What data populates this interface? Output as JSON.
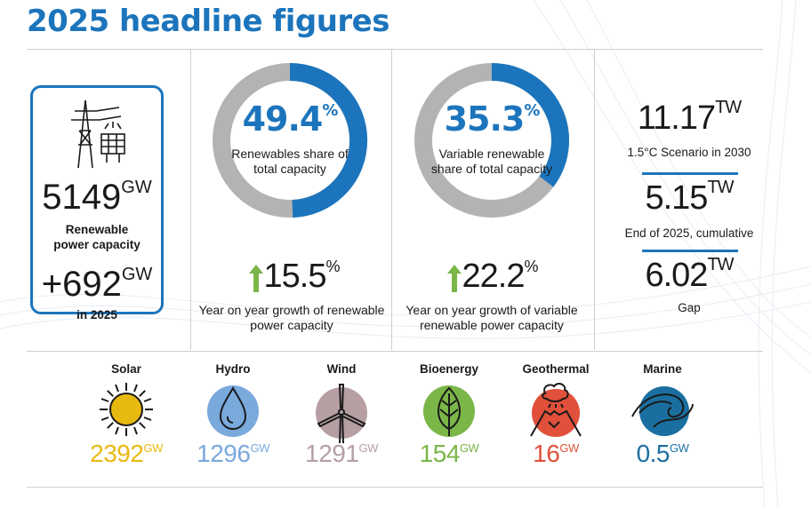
{
  "title": "2025 headline figures",
  "capacity": {
    "value": "5149",
    "unit": "GW",
    "label": "Renewable power capacity",
    "added_value": "+692",
    "added_unit": "GW",
    "added_label": "in 2025"
  },
  "renewables_share": {
    "value": "49.4",
    "unit": "%",
    "fraction": 0.494,
    "label": "Renewables share of total capacity",
    "growth_value": "15.5",
    "growth_unit": "%",
    "growth_label": "Year on year growth of renewable power capacity"
  },
  "variable_share": {
    "value": "35.3",
    "unit": "%",
    "fraction": 0.353,
    "label": "Variable renewable share of total capacity",
    "growth_value": "22.2",
    "growth_unit": "%",
    "growth_label": "Year on year growth of variable renewable power capacity"
  },
  "targets": [
    {
      "value": "11.17",
      "unit": "TW",
      "label": "1.5°C Scenario in 2030"
    },
    {
      "value": "5.15",
      "unit": "TW",
      "label": "End of 2025, cumulative"
    },
    {
      "value": "6.02",
      "unit": "TW",
      "label": "Gap"
    }
  ],
  "sources": [
    {
      "name": "Solar",
      "value": "2392",
      "unit": "GW",
      "color": "#e8b90f",
      "icon": "sun-icon"
    },
    {
      "name": "Hydro",
      "value": "1296",
      "unit": "GW",
      "color": "#7aa9dc",
      "icon": "water-drop-icon"
    },
    {
      "name": "Wind",
      "value": "1291",
      "unit": "GW",
      "color": "#b59fa3",
      "icon": "wind-turbine-icon"
    },
    {
      "name": "Bioenergy",
      "value": "154",
      "unit": "GW",
      "color": "#7ab648",
      "icon": "leaf-icon"
    },
    {
      "name": "Geothermal",
      "value": "16",
      "unit": "GW",
      "color": "#e0503a",
      "icon": "volcano-icon"
    },
    {
      "name": "Marine",
      "value": "0.5",
      "unit": "GW",
      "color": "#1b6fa0",
      "icon": "wave-icon"
    }
  ],
  "colors": {
    "accent": "#1c75bc",
    "donut_grey": "#b3b3b3",
    "growth_arrow": "#7ab648"
  }
}
